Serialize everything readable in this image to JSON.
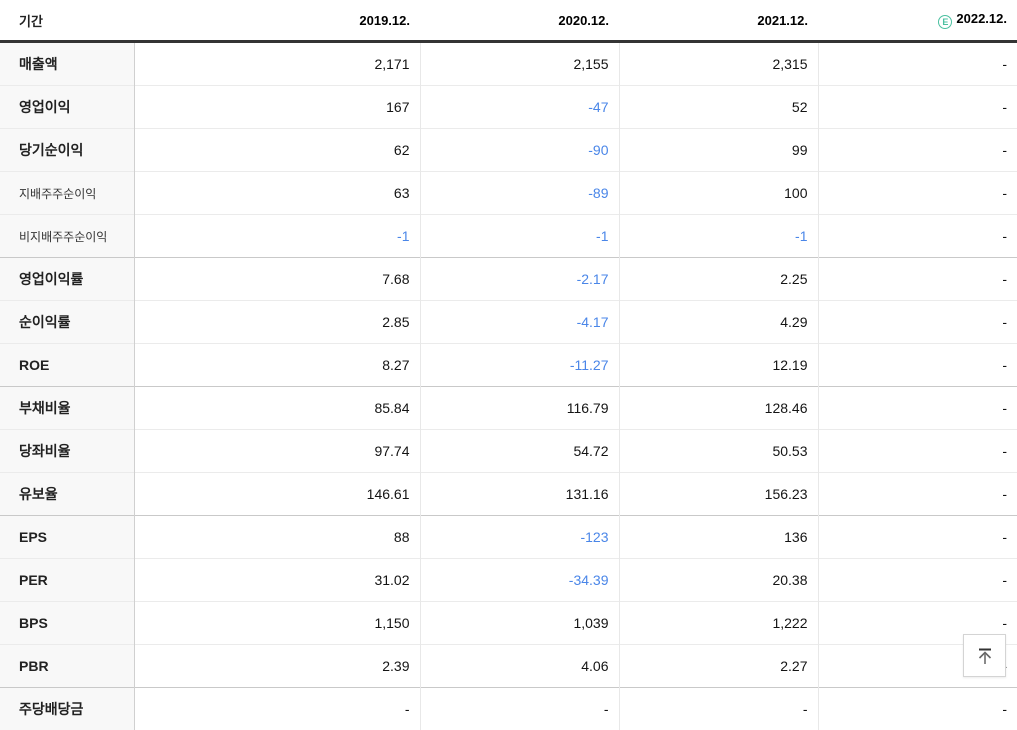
{
  "table": {
    "header": {
      "period_label": "기간",
      "columns": [
        "2019.12.",
        "2020.12.",
        "2021.12.",
        "2022.12."
      ],
      "estimate_badge": "E"
    },
    "rows": [
      {
        "label": "매출액",
        "type": "main",
        "group_start": false,
        "values": [
          "2,171",
          "2,155",
          "2,315",
          "-"
        ]
      },
      {
        "label": "영업이익",
        "type": "main",
        "group_start": false,
        "values": [
          "167",
          "-47",
          "52",
          "-"
        ]
      },
      {
        "label": "당기순이익",
        "type": "main",
        "group_start": false,
        "values": [
          "62",
          "-90",
          "99",
          "-"
        ]
      },
      {
        "label": "지배주주순이익",
        "type": "sub",
        "group_start": false,
        "values": [
          "63",
          "-89",
          "100",
          "-"
        ]
      },
      {
        "label": "비지배주주순이익",
        "type": "sub",
        "group_start": false,
        "values": [
          "-1",
          "-1",
          "-1",
          "-"
        ]
      },
      {
        "label": "영업이익률",
        "type": "main",
        "group_start": true,
        "values": [
          "7.68",
          "-2.17",
          "2.25",
          "-"
        ]
      },
      {
        "label": "순이익률",
        "type": "main",
        "group_start": false,
        "values": [
          "2.85",
          "-4.17",
          "4.29",
          "-"
        ]
      },
      {
        "label": "ROE",
        "type": "main",
        "group_start": false,
        "values": [
          "8.27",
          "-11.27",
          "12.19",
          "-"
        ]
      },
      {
        "label": "부채비율",
        "type": "main",
        "group_start": true,
        "values": [
          "85.84",
          "116.79",
          "128.46",
          "-"
        ]
      },
      {
        "label": "당좌비율",
        "type": "main",
        "group_start": false,
        "values": [
          "97.74",
          "54.72",
          "50.53",
          "-"
        ]
      },
      {
        "label": "유보율",
        "type": "main",
        "group_start": false,
        "values": [
          "146.61",
          "131.16",
          "156.23",
          "-"
        ]
      },
      {
        "label": "EPS",
        "type": "main",
        "group_start": true,
        "values": [
          "88",
          "-123",
          "136",
          "-"
        ]
      },
      {
        "label": "PER",
        "type": "main",
        "group_start": false,
        "values": [
          "31.02",
          "-34.39",
          "20.38",
          "-"
        ]
      },
      {
        "label": "BPS",
        "type": "main",
        "group_start": false,
        "values": [
          "1,150",
          "1,039",
          "1,222",
          "-"
        ]
      },
      {
        "label": "PBR",
        "type": "main",
        "group_start": false,
        "values": [
          "2.39",
          "4.06",
          "2.27",
          "-"
        ]
      },
      {
        "label": "주당배당금",
        "type": "main",
        "group_start": true,
        "values": [
          "-",
          "-",
          "-",
          "-"
        ]
      }
    ]
  },
  "scroll_top_button": {
    "icon": "arrow-up-to-bar-icon"
  },
  "colors": {
    "negative_value": "#4a86e8",
    "estimate_badge": "#4bc0a0",
    "header_border": "#343434",
    "row_separator": "#ebebeb",
    "group_separator": "#c9c9c9",
    "label_column_background": "#f8f8f8"
  }
}
